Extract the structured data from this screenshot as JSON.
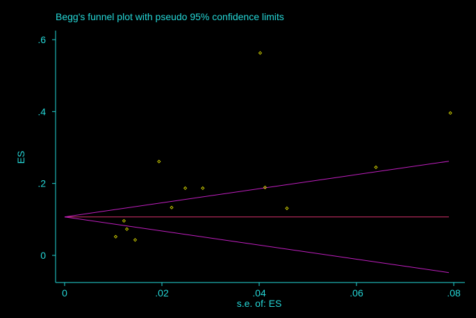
{
  "colors": {
    "background": "#000000",
    "axis": "#25d7d7",
    "text": "#25d7d7",
    "points": "#d9d900",
    "lines": "#c21fc2",
    "center_line": "#d8326e"
  },
  "chart_data": {
    "type": "scatter",
    "title": "Begg's funnel plot with pseudo 95% confidence limits",
    "xlabel": "s.e. of: ES",
    "ylabel": "ES",
    "xlim": [
      0,
      0.08
    ],
    "ylim": [
      -0.07,
      0.62
    ],
    "x_ticks": [
      0,
      0.02,
      0.04,
      0.06,
      0.08
    ],
    "x_tick_labels": [
      "0",
      ".02",
      ".04",
      ".06",
      ".08"
    ],
    "y_ticks": [
      0,
      0.2,
      0.4,
      0.6
    ],
    "y_tick_labels": [
      "0",
      ".2",
      ".4",
      ".6"
    ],
    "grid": false,
    "points": [
      {
        "x": 0.0105,
        "y": 0.052
      },
      {
        "x": 0.0122,
        "y": 0.096
      },
      {
        "x": 0.0128,
        "y": 0.073
      },
      {
        "x": 0.0145,
        "y": 0.043
      },
      {
        "x": 0.0194,
        "y": 0.261
      },
      {
        "x": 0.022,
        "y": 0.133
      },
      {
        "x": 0.0248,
        "y": 0.187
      },
      {
        "x": 0.0284,
        "y": 0.187
      },
      {
        "x": 0.0402,
        "y": 0.563
      },
      {
        "x": 0.0412,
        "y": 0.189
      },
      {
        "x": 0.0457,
        "y": 0.131
      },
      {
        "x": 0.064,
        "y": 0.245
      },
      {
        "x": 0.0793,
        "y": 0.396
      }
    ],
    "pooled_estimate": 0.107,
    "pseudo_ci_z": 1.96,
    "ci_x_range": [
      0,
      0.079
    ]
  }
}
